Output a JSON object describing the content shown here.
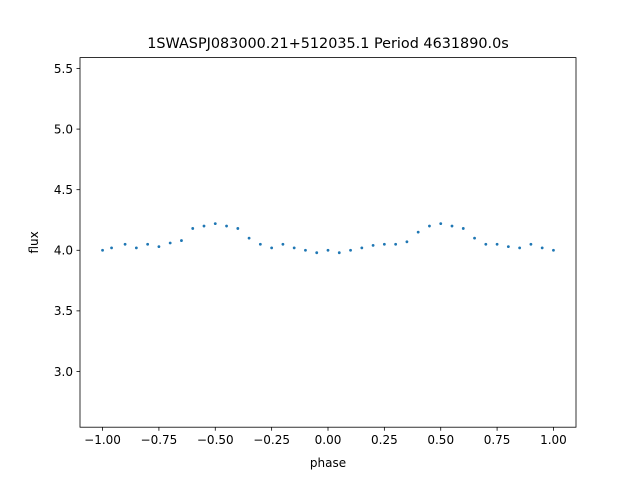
{
  "chart_data": {
    "type": "scatter",
    "title": "1SWASPJ083000.21+512035.1 Period 4631890.0s",
    "xlabel": "phase",
    "ylabel": "flux",
    "xlim": [
      -1.1,
      1.1
    ],
    "ylim": [
      2.54,
      5.59
    ],
    "grid": false,
    "legend": "none",
    "x_ticks": [
      -1.0,
      -0.75,
      -0.5,
      -0.25,
      0.0,
      0.25,
      0.5,
      0.75,
      1.0
    ],
    "x_tick_labels": [
      "−1.00",
      "−0.75",
      "−0.50",
      "−0.25",
      "0.00",
      "0.25",
      "0.50",
      "0.75",
      "1.00"
    ],
    "y_ticks": [
      3.0,
      3.5,
      4.0,
      4.5,
      5.0,
      5.5
    ],
    "y_tick_labels": [
      "3.0",
      "3.5",
      "4.0",
      "4.5",
      "5.0",
      "5.5"
    ],
    "marker_color": "#1f77b4",
    "series": [
      {
        "x": [
          -1.0,
          -0.96,
          -0.9,
          -0.85,
          -0.8,
          -0.75,
          -0.7,
          -0.65,
          -0.6,
          -0.55,
          -0.5,
          -0.45,
          -0.4,
          -0.35,
          -0.3,
          -0.25,
          -0.2,
          -0.15,
          -0.1,
          -0.05,
          0.0,
          0.05,
          0.1,
          0.15,
          0.2,
          0.25,
          0.3,
          0.35,
          0.4,
          0.45,
          0.5,
          0.55,
          0.6,
          0.65,
          0.7,
          0.75,
          0.8,
          0.85,
          0.9,
          0.95,
          1.0
        ],
        "y": [
          4.0,
          4.02,
          4.05,
          4.02,
          4.05,
          4.03,
          4.06,
          4.08,
          4.18,
          4.2,
          4.22,
          4.2,
          4.18,
          4.1,
          4.05,
          4.02,
          4.05,
          4.02,
          4.0,
          3.98,
          4.0,
          3.98,
          4.0,
          4.02,
          4.04,
          4.05,
          4.05,
          4.07,
          4.15,
          4.2,
          4.22,
          4.2,
          4.18,
          4.1,
          4.05,
          4.05,
          4.03,
          4.02,
          4.05,
          4.02,
          4.0
        ]
      }
    ]
  }
}
